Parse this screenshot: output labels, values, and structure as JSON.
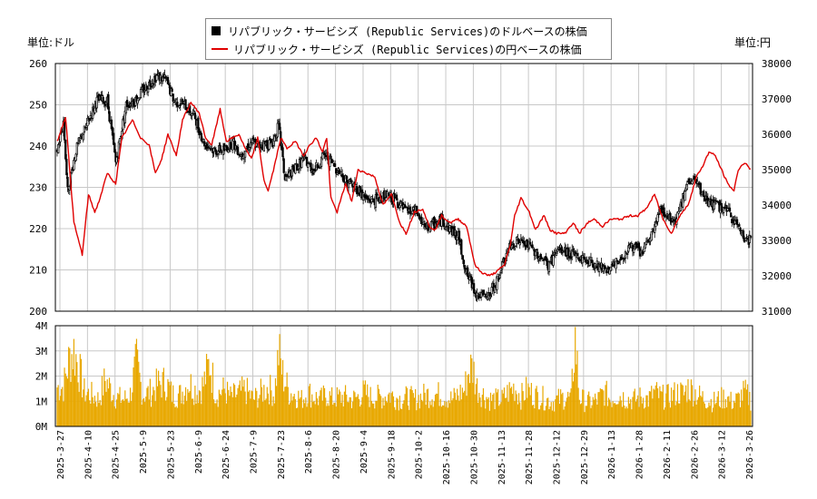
{
  "legend": {
    "usd_label": "リパブリック・サービシズ (Republic Services)のドルベースの株価",
    "jpy_label": "リパブリック・サービシズ (Republic Services)の円ベースの株価"
  },
  "units": {
    "left": "単位:ドル",
    "right": "単位:円"
  },
  "colors": {
    "candle": "#000000",
    "jpy_line": "#e00000",
    "volume": "#e8a800",
    "grid": "#c8c8c8"
  },
  "chart_data": {
    "type": "candlestick+line+bar",
    "x_tick_labels": [
      "2025-3-27",
      "2025-4-10",
      "2025-4-25",
      "2025-5-9",
      "2025-5-23",
      "2025-6-9",
      "2025-6-24",
      "2025-7-9",
      "2025-7-23",
      "2025-8-6",
      "2025-8-20",
      "2025-9-4",
      "2025-9-18",
      "2025-10-2",
      "2025-10-16",
      "2025-10-30",
      "2025-11-13",
      "2025-11-28",
      "2025-12-12",
      "2025-12-29",
      "2026-1-13",
      "2026-1-28",
      "2026-2-11",
      "2026-2-26",
      "2026-3-12",
      "2026-3-26"
    ],
    "y_left": {
      "ticks": [
        200,
        210,
        220,
        230,
        240,
        250,
        260
      ],
      "range": [
        200,
        260
      ],
      "unit": "ドル"
    },
    "y_right": {
      "ticks": [
        31000,
        32000,
        33000,
        34000,
        35000,
        36000,
        37000,
        38000
      ],
      "range": [
        31000,
        38000
      ],
      "unit": "円"
    },
    "y_volume": {
      "ticks": [
        "0M",
        "1M",
        "2M",
        "3M",
        "4M"
      ],
      "range": [
        0,
        4
      ]
    },
    "usd_close_keypoints": [
      [
        0,
        239
      ],
      [
        6,
        246
      ],
      [
        10,
        229
      ],
      [
        18,
        239
      ],
      [
        28,
        245
      ],
      [
        38,
        251
      ],
      [
        48,
        251
      ],
      [
        56,
        236
      ],
      [
        66,
        250
      ],
      [
        74,
        251
      ],
      [
        84,
        254
      ],
      [
        95,
        257
      ],
      [
        104,
        256
      ],
      [
        112,
        251
      ],
      [
        122,
        250
      ],
      [
        132,
        247
      ],
      [
        140,
        241
      ],
      [
        150,
        239
      ],
      [
        160,
        239
      ],
      [
        168,
        241
      ],
      [
        176,
        238
      ],
      [
        186,
        241
      ],
      [
        194,
        240
      ],
      [
        206,
        241
      ],
      [
        212,
        245
      ],
      [
        218,
        232
      ],
      [
        226,
        234
      ],
      [
        236,
        237
      ],
      [
        246,
        234
      ],
      [
        256,
        238
      ],
      [
        266,
        235
      ],
      [
        276,
        232
      ],
      [
        286,
        230
      ],
      [
        296,
        227
      ],
      [
        306,
        227
      ],
      [
        314,
        228
      ],
      [
        324,
        227
      ],
      [
        334,
        224
      ],
      [
        344,
        224
      ],
      [
        352,
        220
      ],
      [
        360,
        221
      ],
      [
        368,
        222
      ],
      [
        376,
        220
      ],
      [
        384,
        218
      ],
      [
        392,
        209
      ],
      [
        402,
        204
      ],
      [
        412,
        203
      ],
      [
        422,
        208
      ],
      [
        432,
        215
      ],
      [
        440,
        217
      ],
      [
        450,
        216
      ],
      [
        460,
        214
      ],
      [
        470,
        211
      ],
      [
        480,
        215
      ],
      [
        490,
        214
      ],
      [
        500,
        213
      ],
      [
        510,
        212
      ],
      [
        520,
        211
      ],
      [
        530,
        210
      ],
      [
        540,
        213
      ],
      [
        550,
        216
      ],
      [
        560,
        214
      ],
      [
        570,
        219
      ],
      [
        578,
        225
      ],
      [
        584,
        223
      ],
      [
        592,
        222
      ],
      [
        600,
        228
      ],
      [
        606,
        232
      ],
      [
        612,
        231
      ],
      [
        620,
        227
      ],
      [
        628,
        226
      ],
      [
        636,
        225
      ],
      [
        642,
        224
      ],
      [
        648,
        222
      ],
      [
        654,
        220
      ],
      [
        660,
        217
      ],
      [
        665,
        218
      ]
    ],
    "jpy_close_keypoints": [
      [
        0,
        35800
      ],
      [
        8,
        36500
      ],
      [
        16,
        33500
      ],
      [
        24,
        32600
      ],
      [
        30,
        34300
      ],
      [
        36,
        33800
      ],
      [
        40,
        34100
      ],
      [
        48,
        34900
      ],
      [
        56,
        34600
      ],
      [
        62,
        35900
      ],
      [
        72,
        36400
      ],
      [
        80,
        35900
      ],
      [
        88,
        35700
      ],
      [
        94,
        34900
      ],
      [
        100,
        35300
      ],
      [
        106,
        36000
      ],
      [
        114,
        35400
      ],
      [
        120,
        36400
      ],
      [
        128,
        36900
      ],
      [
        136,
        36600
      ],
      [
        142,
        35900
      ],
      [
        148,
        35700
      ],
      [
        156,
        36700
      ],
      [
        162,
        35800
      ],
      [
        168,
        35900
      ],
      [
        174,
        36000
      ],
      [
        180,
        35600
      ],
      [
        186,
        35300
      ],
      [
        192,
        35900
      ],
      [
        198,
        34700
      ],
      [
        202,
        34400
      ],
      [
        208,
        35100
      ],
      [
        214,
        35900
      ],
      [
        220,
        35600
      ],
      [
        228,
        35800
      ],
      [
        236,
        35400
      ],
      [
        242,
        35700
      ],
      [
        248,
        35900
      ],
      [
        254,
        35500
      ],
      [
        258,
        35900
      ],
      [
        262,
        34200
      ],
      [
        268,
        33800
      ],
      [
        276,
        34600
      ],
      [
        282,
        34100
      ],
      [
        288,
        35000
      ],
      [
        296,
        34900
      ],
      [
        304,
        34800
      ],
      [
        312,
        34000
      ],
      [
        320,
        34300
      ],
      [
        328,
        33500
      ],
      [
        334,
        33200
      ],
      [
        342,
        33800
      ],
      [
        350,
        33900
      ],
      [
        356,
        33400
      ],
      [
        362,
        33300
      ],
      [
        368,
        33700
      ],
      [
        376,
        33500
      ],
      [
        384,
        33600
      ],
      [
        392,
        33400
      ],
      [
        400,
        32300
      ],
      [
        406,
        32100
      ],
      [
        414,
        32000
      ],
      [
        420,
        32100
      ],
      [
        428,
        32300
      ],
      [
        434,
        32900
      ],
      [
        438,
        33700
      ],
      [
        444,
        34200
      ],
      [
        452,
        33800
      ],
      [
        458,
        33300
      ],
      [
        466,
        33700
      ],
      [
        472,
        33300
      ],
      [
        478,
        33200
      ],
      [
        486,
        33200
      ],
      [
        494,
        33500
      ],
      [
        500,
        33200
      ],
      [
        508,
        33500
      ],
      [
        514,
        33600
      ],
      [
        522,
        33400
      ],
      [
        530,
        33600
      ],
      [
        540,
        33600
      ],
      [
        548,
        33700
      ],
      [
        556,
        33700
      ],
      [
        564,
        33900
      ],
      [
        572,
        34300
      ],
      [
        580,
        33600
      ],
      [
        588,
        33200
      ],
      [
        596,
        33700
      ],
      [
        604,
        34000
      ],
      [
        612,
        34800
      ],
      [
        618,
        35100
      ],
      [
        624,
        35500
      ],
      [
        630,
        35400
      ],
      [
        636,
        35000
      ],
      [
        642,
        34600
      ],
      [
        648,
        34400
      ],
      [
        652,
        35000
      ],
      [
        658,
        35200
      ],
      [
        664,
        35000
      ]
    ],
    "volume_keypoints_M": [
      [
        0,
        1.6
      ],
      [
        6,
        1.6
      ],
      [
        12,
        2.8
      ],
      [
        16,
        3.1
      ],
      [
        20,
        2.5
      ],
      [
        26,
        1.4
      ],
      [
        32,
        1.3
      ],
      [
        40,
        1.1
      ],
      [
        46,
        1.9
      ],
      [
        56,
        1.2
      ],
      [
        64,
        1.1
      ],
      [
        70,
        1.3
      ],
      [
        76,
        2.6
      ],
      [
        82,
        1.3
      ],
      [
        90,
        1.4
      ],
      [
        96,
        1.7
      ],
      [
        104,
        1.8
      ],
      [
        110,
        1.3
      ],
      [
        118,
        1.3
      ],
      [
        126,
        1.8
      ],
      [
        134,
        1.4
      ],
      [
        140,
        1.7
      ],
      [
        146,
        2.6
      ],
      [
        152,
        1.3
      ],
      [
        160,
        1.5
      ],
      [
        166,
        1.2
      ],
      [
        172,
        1.3
      ],
      [
        180,
        1.5
      ],
      [
        188,
        1.1
      ],
      [
        196,
        1.4
      ],
      [
        202,
        1.6
      ],
      [
        208,
        1.3
      ],
      [
        212,
        3.0
      ],
      [
        216,
        2.1
      ],
      [
        222,
        1.4
      ],
      [
        228,
        1.3
      ],
      [
        234,
        1.1
      ],
      [
        240,
        1.4
      ],
      [
        246,
        1.2
      ],
      [
        252,
        1.1
      ],
      [
        258,
        1.3
      ],
      [
        264,
        1.1
      ],
      [
        270,
        1.2
      ],
      [
        276,
        1.2
      ],
      [
        282,
        1.1
      ],
      [
        288,
        1.2
      ],
      [
        294,
        1.4
      ],
      [
        300,
        1.2
      ],
      [
        306,
        1.2
      ],
      [
        312,
        1.2
      ],
      [
        318,
        1.3
      ],
      [
        324,
        1.2
      ],
      [
        330,
        1.1
      ],
      [
        336,
        1.2
      ],
      [
        342,
        1.1
      ],
      [
        348,
        1.2
      ],
      [
        354,
        1.3
      ],
      [
        360,
        1.3
      ],
      [
        366,
        1.3
      ],
      [
        372,
        1.2
      ],
      [
        378,
        1.1
      ],
      [
        384,
        1.3
      ],
      [
        390,
        1.5
      ],
      [
        394,
        2.3
      ],
      [
        398,
        2.4
      ],
      [
        402,
        1.6
      ],
      [
        408,
        1.3
      ],
      [
        414,
        1.1
      ],
      [
        420,
        1.1
      ],
      [
        426,
        1.1
      ],
      [
        432,
        1.4
      ],
      [
        438,
        1.6
      ],
      [
        444,
        1.2
      ],
      [
        450,
        1.5
      ],
      [
        456,
        1.3
      ],
      [
        462,
        1.2
      ],
      [
        468,
        1.1
      ],
      [
        474,
        1.0
      ],
      [
        480,
        1.1
      ],
      [
        486,
        1.2
      ],
      [
        492,
        1.1
      ],
      [
        496,
        3.7
      ],
      [
        500,
        1.2
      ],
      [
        506,
        1.0
      ],
      [
        512,
        1.0
      ],
      [
        518,
        1.1
      ],
      [
        524,
        1.4
      ],
      [
        530,
        1.1
      ],
      [
        536,
        1.3
      ],
      [
        542,
        1.2
      ],
      [
        548,
        1.1
      ],
      [
        554,
        1.1
      ],
      [
        560,
        1.2
      ],
      [
        566,
        1.1
      ],
      [
        572,
        1.4
      ],
      [
        578,
        1.2
      ],
      [
        584,
        1.2
      ],
      [
        590,
        1.3
      ],
      [
        596,
        1.4
      ],
      [
        600,
        1.3
      ],
      [
        604,
        1.6
      ],
      [
        610,
        1.4
      ],
      [
        616,
        1.2
      ],
      [
        622,
        1.1
      ],
      [
        628,
        1.0
      ],
      [
        634,
        1.1
      ],
      [
        640,
        1.2
      ],
      [
        646,
        1.0
      ],
      [
        652,
        1.1
      ],
      [
        658,
        1.4
      ],
      [
        664,
        1.1
      ]
    ],
    "n_days": 665
  }
}
